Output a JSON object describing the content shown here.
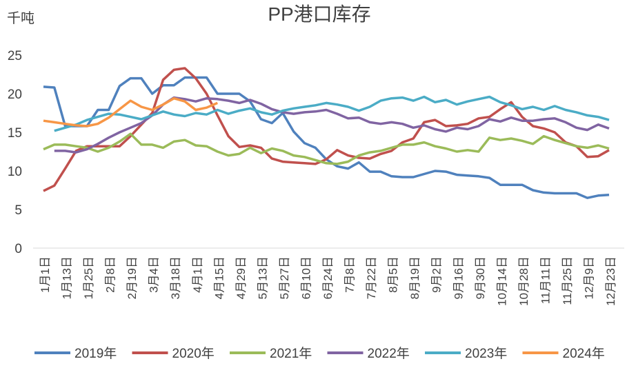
{
  "chart_data": {
    "type": "line",
    "title": "PP港口库存",
    "y_label": "千吨",
    "categories": [
      "1月1日",
      null,
      "1月13日",
      null,
      "1月25日",
      null,
      "2月8日",
      null,
      "2月19日",
      null,
      "3月4日",
      null,
      "3月18日",
      null,
      "4月1日",
      null,
      "4月15日",
      null,
      "4月29日",
      null,
      "5月13日",
      null,
      "5月27日",
      null,
      "6月10日",
      null,
      "6月24日",
      null,
      "7月8日",
      null,
      "7月22日",
      null,
      "8月5日",
      null,
      "8月19日",
      null,
      "9月2日",
      null,
      "9月16日",
      null,
      "9月30日",
      null,
      "10月14日",
      null,
      "10月28日",
      null,
      "11月11日",
      null,
      "11月25日",
      null,
      "12月9日",
      null,
      "12月23日"
    ],
    "series": [
      {
        "name": "2019年",
        "color": "#4f81bd",
        "values": [
          20.9,
          20.8,
          15.8,
          15.8,
          15.8,
          17.9,
          17.9,
          21.0,
          22.0,
          22.0,
          20.0,
          21.1,
          21.1,
          22.1,
          22.1,
          22.1,
          20.0,
          20.0,
          20.0,
          19.0,
          16.7,
          16.2,
          17.5,
          15.1,
          13.6,
          13.0,
          11.5,
          10.6,
          10.3,
          11.1,
          9.9,
          9.9,
          9.3,
          9.2,
          9.2,
          9.6,
          10.0,
          9.9,
          9.5,
          9.4,
          9.3,
          9.1,
          8.2,
          8.2,
          8.2,
          7.5,
          7.2,
          7.1,
          7.1,
          7.1,
          6.5,
          6.8,
          6.9
        ]
      },
      {
        "name": "2020年",
        "color": "#c0504d",
        "values": [
          7.4,
          8.1,
          10.3,
          12.6,
          13.2,
          13.2,
          13.2,
          13.2,
          14.5,
          16.0,
          17.5,
          21.8,
          23.1,
          23.3,
          22.0,
          20.0,
          17.2,
          14.5,
          13.1,
          13.3,
          13.0,
          11.6,
          11.2,
          11.1,
          11.0,
          10.9,
          11.5,
          12.7,
          12.0,
          11.7,
          11.6,
          12.2,
          12.6,
          13.7,
          14.2,
          16.3,
          16.6,
          15.8,
          15.9,
          16.1,
          16.8,
          17.0,
          18.0,
          18.9,
          17.0,
          15.8,
          15.5,
          15.0,
          13.7,
          13.2,
          11.8,
          11.9,
          12.7
        ]
      },
      {
        "name": "2021年",
        "color": "#9bbb59",
        "values": [
          12.8,
          13.4,
          13.4,
          13.2,
          13.0,
          12.5,
          13.0,
          13.8,
          14.8,
          13.4,
          13.4,
          13.0,
          13.8,
          14.0,
          13.3,
          13.2,
          12.5,
          12.0,
          12.2,
          13.0,
          12.3,
          12.9,
          12.6,
          12.0,
          11.8,
          11.4,
          11.0,
          10.9,
          11.2,
          12.0,
          12.4,
          12.6,
          13.0,
          13.4,
          13.4,
          13.7,
          13.2,
          12.9,
          12.5,
          12.7,
          12.5,
          14.3,
          14.0,
          14.2,
          13.9,
          13.5,
          14.5,
          14.0,
          13.6,
          13.2,
          13.0,
          13.3,
          12.9
        ]
      },
      {
        "name": "2022年",
        "color": "#8064a2",
        "values": [
          null,
          12.6,
          12.6,
          12.4,
          12.8,
          13.5,
          14.3,
          15.0,
          15.6,
          16.2,
          17.2,
          18.6,
          19.5,
          19.3,
          19.0,
          19.4,
          19.3,
          19.1,
          18.8,
          19.2,
          18.7,
          18.0,
          17.6,
          17.4,
          17.6,
          17.7,
          17.9,
          17.4,
          16.8,
          16.9,
          16.3,
          16.1,
          16.3,
          16.1,
          15.6,
          15.9,
          15.4,
          15.1,
          15.6,
          15.4,
          15.8,
          16.7,
          16.4,
          16.9,
          16.5,
          16.5,
          16.7,
          16.8,
          16.3,
          15.6,
          15.3,
          16.0,
          15.5
        ]
      },
      {
        "name": "2023年",
        "color": "#4bacc6",
        "values": [
          null,
          15.2,
          15.6,
          16.0,
          16.6,
          17.0,
          17.4,
          17.3,
          17.0,
          16.7,
          17.2,
          17.7,
          17.3,
          17.1,
          17.5,
          17.3,
          17.9,
          17.4,
          17.8,
          18.1,
          17.6,
          17.3,
          17.8,
          18.1,
          18.3,
          18.5,
          18.8,
          18.6,
          18.3,
          17.8,
          18.3,
          19.1,
          19.4,
          19.5,
          19.1,
          19.6,
          18.9,
          19.2,
          18.6,
          19.0,
          19.3,
          19.6,
          18.9,
          18.5,
          18.0,
          18.3,
          17.9,
          18.4,
          17.9,
          17.6,
          17.2,
          17.0,
          16.6
        ]
      },
      {
        "name": "2024年",
        "color": "#f79646",
        "values": [
          16.5,
          16.3,
          16.1,
          15.9,
          15.8,
          16.1,
          16.9,
          18.0,
          19.1,
          18.3,
          17.9,
          18.6,
          19.4,
          19.0,
          17.9,
          18.2,
          18.8,
          null,
          null,
          null,
          null,
          null,
          null,
          null,
          null,
          null,
          null,
          null,
          null,
          null,
          null,
          null,
          null,
          null,
          null,
          null,
          null,
          null,
          null,
          null,
          null,
          null,
          null,
          null,
          null,
          null,
          null,
          null,
          null,
          null,
          null,
          null,
          null
        ]
      }
    ],
    "ylim": [
      0,
      25
    ],
    "yticks": [
      0,
      5,
      10,
      15,
      20,
      25
    ],
    "grid": false,
    "legend": "bottom"
  }
}
